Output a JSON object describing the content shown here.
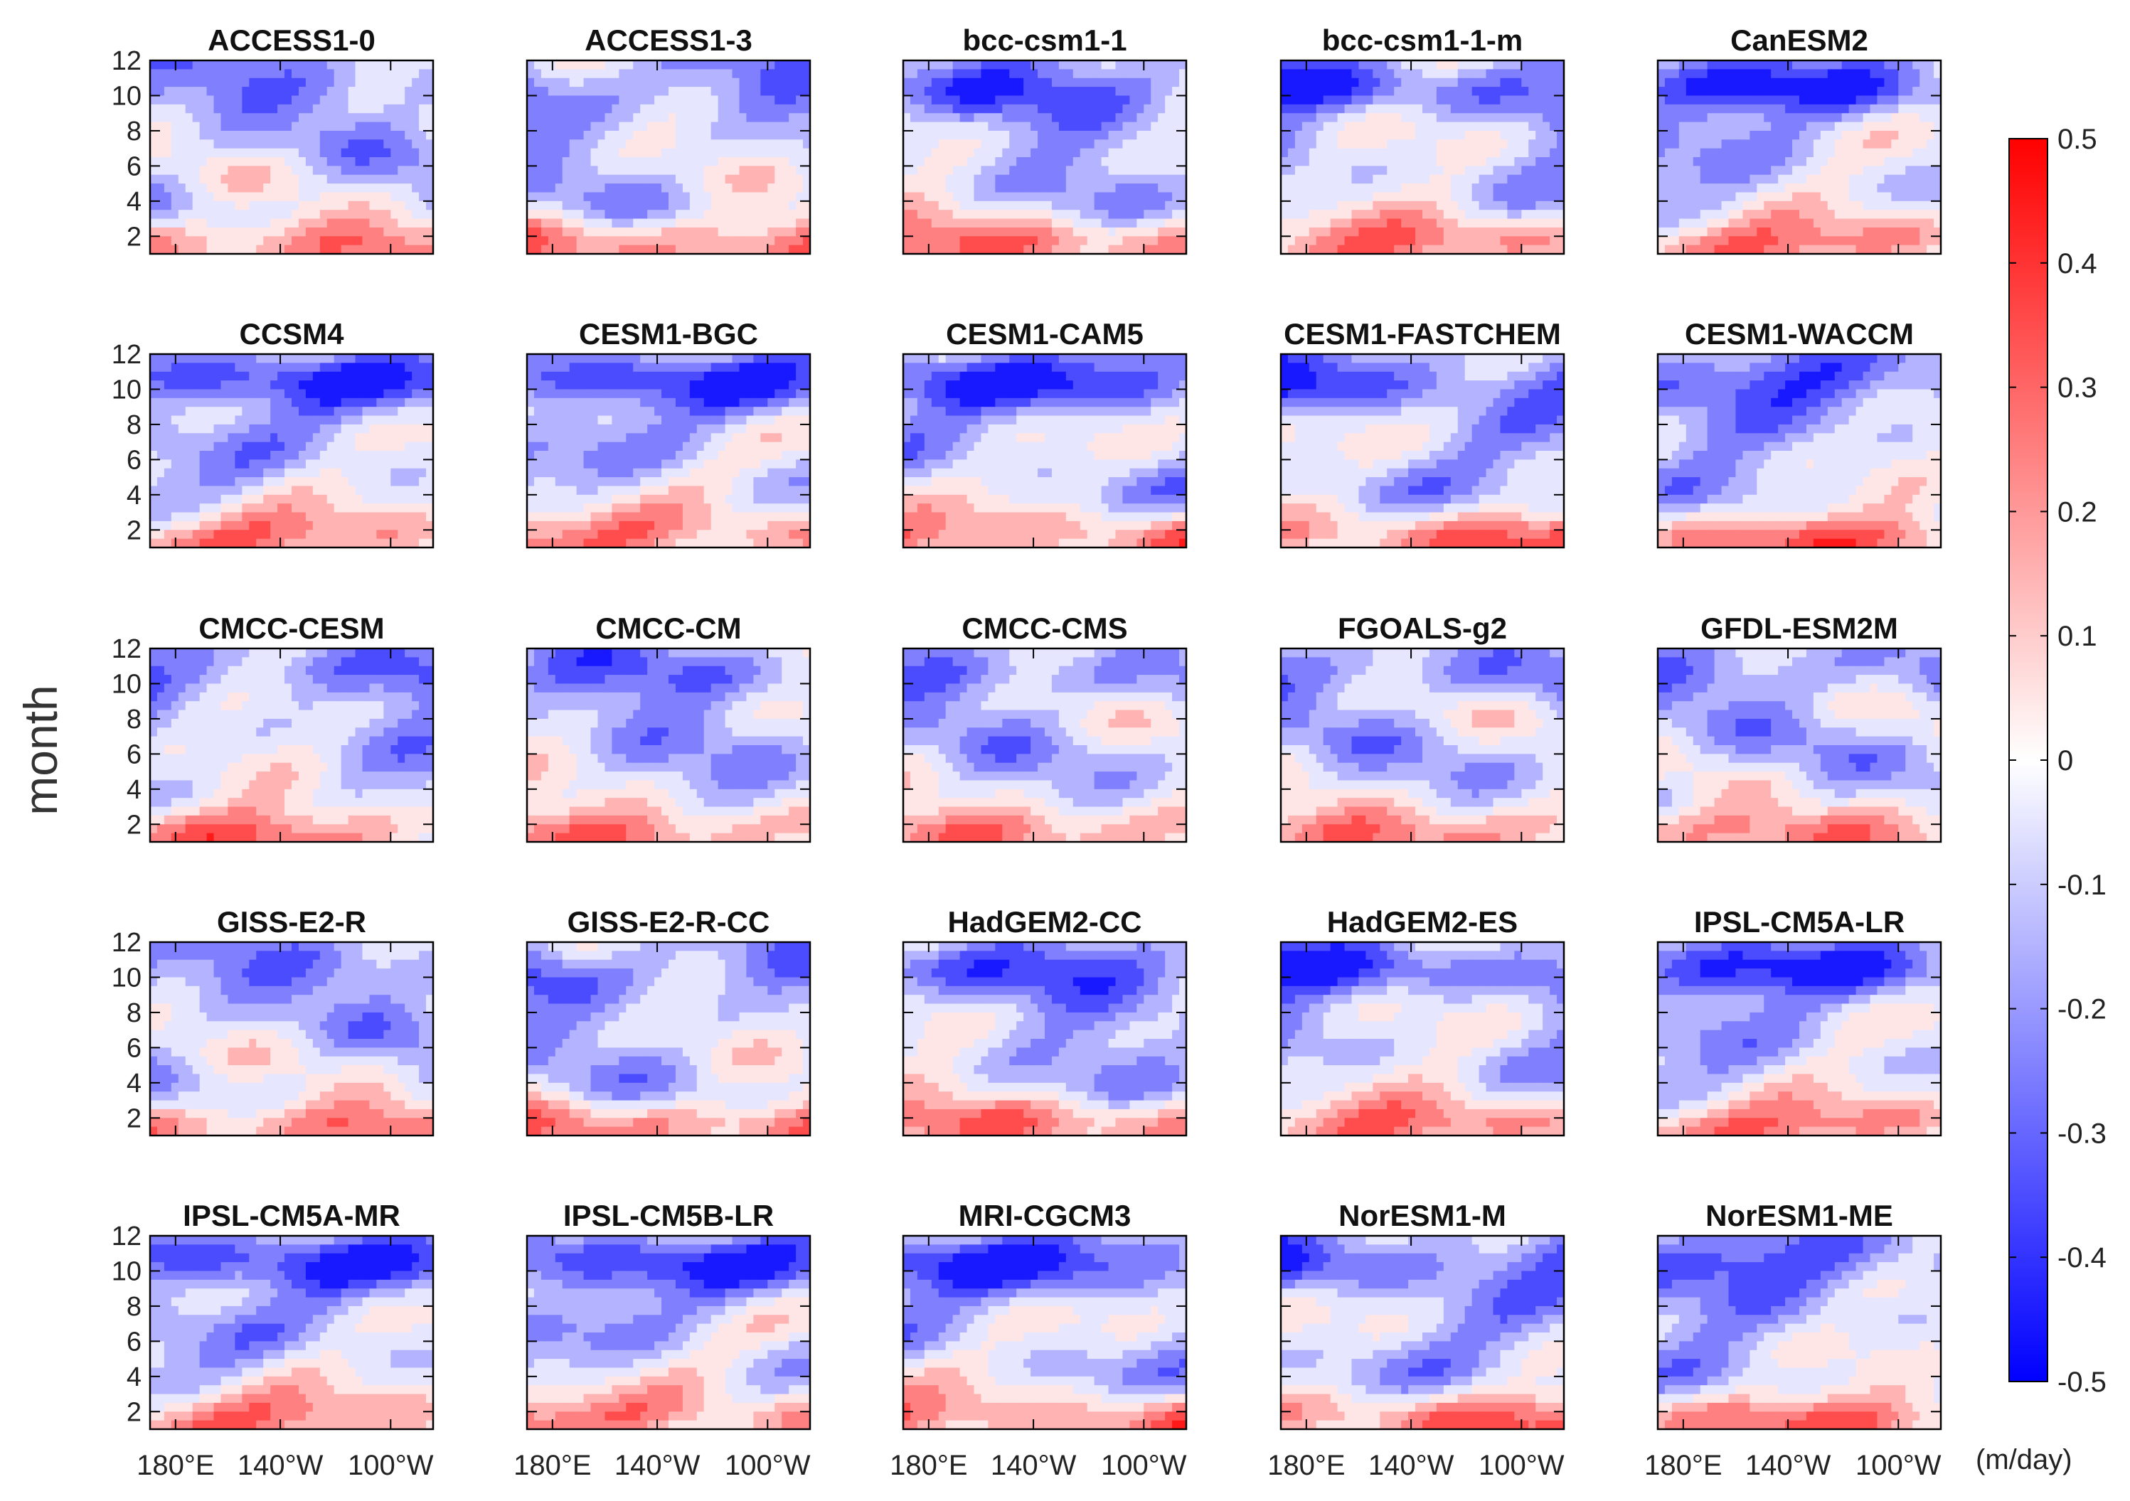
{
  "chart_data": {
    "type": "heatmap",
    "title": "",
    "ylabel": "month",
    "xlabel": "",
    "x_ticks": [
      "180°E",
      "140°W",
      "100°W"
    ],
    "y_ticks": [
      "2",
      "4",
      "6",
      "8",
      "10",
      "12"
    ],
    "ylim": [
      1,
      12
    ],
    "grid": false,
    "colorbar": {
      "unit": "(m/day)",
      "min": -0.5,
      "max": 0.5,
      "ticks": [
        "0.5",
        "0.4",
        "0.3",
        "0.2",
        "0.1",
        "0",
        "-0.1",
        "-0.2",
        "-0.3",
        "-0.4",
        "-0.5"
      ],
      "color_low": "#0000ff",
      "color_mid": "#ffffff",
      "color_high": "#ff0000",
      "position": "right"
    },
    "panels": [
      "ACCESS1-0",
      "ACCESS1-3",
      "bcc-csm1-1",
      "bcc-csm1-1-m",
      "CanESM2",
      "CCSM4",
      "CESM1-BGC",
      "CESM1-CAM5",
      "CESM1-FASTCHEM",
      "CESM1-WACCM",
      "CMCC-CESM",
      "CMCC-CM",
      "CMCC-CMS",
      "FGOALS-g2",
      "GFDL-ESM2M",
      "GISS-E2-R",
      "GISS-E2-R-CC",
      "HadGEM2-CC",
      "HadGEM2-ES",
      "IPSL-CM5A-LR",
      "IPSL-CM5A-MR",
      "IPSL-CM5B-LR",
      "MRI-CGCM3",
      "NorESM1-M",
      "NorESM1-ME"
    ]
  }
}
